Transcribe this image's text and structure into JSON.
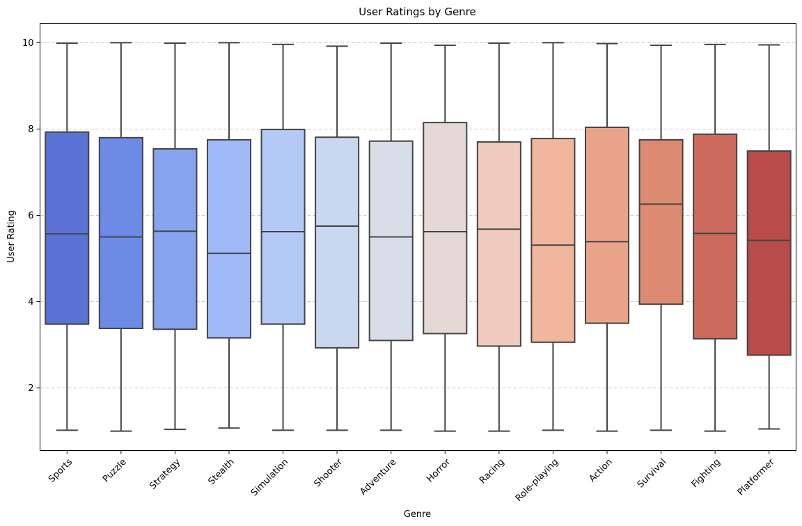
{
  "chart_data": {
    "type": "box",
    "title": "User Ratings by Genre",
    "xlabel": "Genre",
    "ylabel": "User Rating",
    "ylim": [
      0.55,
      10.45
    ],
    "yticks": [
      2,
      4,
      6,
      8,
      10
    ],
    "grid": "y-dashed",
    "legend": "none",
    "categories": [
      "Sports",
      "Puzzle",
      "Strategy",
      "Stealth",
      "Simulation",
      "Shooter",
      "Adventure",
      "Horror",
      "Racing",
      "Role-playing",
      "Action",
      "Survival",
      "Fighting",
      "Platformer"
    ],
    "boxes": [
      {
        "min": 1.02,
        "q1": 3.48,
        "median": 5.57,
        "q3": 7.93,
        "max": 9.99
      },
      {
        "min": 1.0,
        "q1": 3.38,
        "median": 5.5,
        "q3": 7.8,
        "max": 10.0
      },
      {
        "min": 1.04,
        "q1": 3.36,
        "median": 5.63,
        "q3": 7.54,
        "max": 9.99
      },
      {
        "min": 1.07,
        "q1": 3.16,
        "median": 5.12,
        "q3": 7.75,
        "max": 10.0
      },
      {
        "min": 1.02,
        "q1": 3.48,
        "median": 5.62,
        "q3": 7.99,
        "max": 9.96
      },
      {
        "min": 1.02,
        "q1": 2.93,
        "median": 5.75,
        "q3": 7.81,
        "max": 9.92
      },
      {
        "min": 1.02,
        "q1": 3.1,
        "median": 5.5,
        "q3": 7.72,
        "max": 9.99
      },
      {
        "min": 1.0,
        "q1": 3.26,
        "median": 5.62,
        "q3": 8.15,
        "max": 9.94
      },
      {
        "min": 1.0,
        "q1": 2.97,
        "median": 5.68,
        "q3": 7.7,
        "max": 9.99
      },
      {
        "min": 1.02,
        "q1": 3.06,
        "median": 5.31,
        "q3": 7.78,
        "max": 10.0
      },
      {
        "min": 1.0,
        "q1": 3.5,
        "median": 5.39,
        "q3": 8.04,
        "max": 9.98
      },
      {
        "min": 1.02,
        "q1": 3.94,
        "median": 6.26,
        "q3": 7.75,
        "max": 9.94
      },
      {
        "min": 1.0,
        "q1": 3.14,
        "median": 5.58,
        "q3": 7.88,
        "max": 9.96
      },
      {
        "min": 1.05,
        "q1": 2.76,
        "median": 5.42,
        "q3": 7.49,
        "max": 9.95
      }
    ],
    "colors": [
      "#5a72d3",
      "#6d8ae6",
      "#87a5ef",
      "#a0b9f7",
      "#b4c9f6",
      "#c9d7f0",
      "#d8dee7",
      "#e4d9d4",
      "#eecbbc",
      "#f1b79d",
      "#e9a389",
      "#dd8a72",
      "#cb6a5d",
      "#b94b48"
    ],
    "line_color": "#444444"
  }
}
